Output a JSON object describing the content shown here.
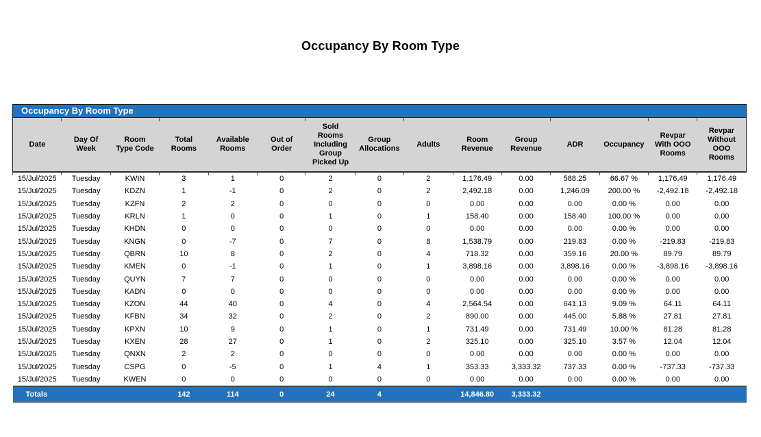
{
  "page": {
    "title": "Occupancy By Room Type"
  },
  "report": {
    "header_bar": "Occupancy By Room Type",
    "columns": [
      "Date",
      "Day Of\nWeek",
      "Room\nType Code",
      "Total\nRooms",
      "Available\nRooms",
      "Out of\nOrder",
      "Sold\nRooms\nIncluding\nGroup\nPicked Up",
      "Group\nAllocations",
      "Adults",
      "Room\nRevenue",
      "Group\nRevenue",
      "ADR",
      "Occupancy",
      "Revpar\nWith OOO\nRooms",
      "Revpar\nWithout\nOOO\nRooms"
    ],
    "rows": [
      [
        "15/Jul/2025",
        "Tuesday",
        "KWIN",
        "3",
        "1",
        "0",
        "2",
        "0",
        "2",
        "1,176.49",
        "0.00",
        "588.25",
        "66.67 %",
        "1,176.49",
        "1,176.49"
      ],
      [
        "15/Jul/2025",
        "Tuesday",
        "KDZN",
        "1",
        "-1",
        "0",
        "2",
        "0",
        "2",
        "2,492.18",
        "0.00",
        "1,246.09",
        "200.00 %",
        "-2,492.18",
        "-2,492.18"
      ],
      [
        "15/Jul/2025",
        "Tuesday",
        "KZFN",
        "2",
        "2",
        "0",
        "0",
        "0",
        "0",
        "0.00",
        "0.00",
        "0.00",
        "0.00 %",
        "0.00",
        "0.00"
      ],
      [
        "15/Jul/2025",
        "Tuesday",
        "KRLN",
        "1",
        "0",
        "0",
        "1",
        "0",
        "1",
        "158.40",
        "0.00",
        "158.40",
        "100.00 %",
        "0.00",
        "0.00"
      ],
      [
        "15/Jul/2025",
        "Tuesday",
        "KHDN",
        "0",
        "0",
        "0",
        "0",
        "0",
        "0",
        "0.00",
        "0.00",
        "0.00",
        "0.00 %",
        "0.00",
        "0.00"
      ],
      [
        "15/Jul/2025",
        "Tuesday",
        "KNGN",
        "0",
        "-7",
        "0",
        "7",
        "0",
        "8",
        "1,538.79",
        "0.00",
        "219.83",
        "0.00 %",
        "-219.83",
        "-219.83"
      ],
      [
        "15/Jul/2025",
        "Tuesday",
        "QBRN",
        "10",
        "8",
        "0",
        "2",
        "0",
        "4",
        "718.32",
        "0.00",
        "359.16",
        "20.00 %",
        "89.79",
        "89.79"
      ],
      [
        "15/Jul/2025",
        "Tuesday",
        "KMEN",
        "0",
        "-1",
        "0",
        "1",
        "0",
        "1",
        "3,898.16",
        "0.00",
        "3,898.16",
        "0.00 %",
        "-3,898.16",
        "-3,898.16"
      ],
      [
        "15/Jul/2025",
        "Tuesday",
        "QUYN",
        "7",
        "7",
        "0",
        "0",
        "0",
        "0",
        "0.00",
        "0.00",
        "0.00",
        "0.00 %",
        "0.00",
        "0.00"
      ],
      [
        "15/Jul/2025",
        "Tuesday",
        "KADN",
        "0",
        "0",
        "0",
        "0",
        "0",
        "0",
        "0.00",
        "0.00",
        "0.00",
        "0.00 %",
        "0.00",
        "0.00"
      ],
      [
        "15/Jul/2025",
        "Tuesday",
        "KZON",
        "44",
        "40",
        "0",
        "4",
        "0",
        "4",
        "2,564.54",
        "0.00",
        "641.13",
        "9.09 %",
        "64.11",
        "64.11"
      ],
      [
        "15/Jul/2025",
        "Tuesday",
        "KFBN",
        "34",
        "32",
        "0",
        "2",
        "0",
        "2",
        "890.00",
        "0.00",
        "445.00",
        "5.88 %",
        "27.81",
        "27.81"
      ],
      [
        "15/Jul/2025",
        "Tuesday",
        "KPXN",
        "10",
        "9",
        "0",
        "1",
        "0",
        "1",
        "731.49",
        "0.00",
        "731.49",
        "10.00 %",
        "81.28",
        "81.28"
      ],
      [
        "15/Jul/2025",
        "Tuesday",
        "KXEN",
        "28",
        "27",
        "0",
        "1",
        "0",
        "2",
        "325.10",
        "0.00",
        "325.10",
        "3.57 %",
        "12.04",
        "12.04"
      ],
      [
        "15/Jul/2025",
        "Tuesday",
        "QNXN",
        "2",
        "2",
        "0",
        "0",
        "0",
        "0",
        "0.00",
        "0.00",
        "0.00",
        "0.00 %",
        "0.00",
        "0.00"
      ],
      [
        "15/Jul/2025",
        "Tuesday",
        "CSPG",
        "0",
        "-5",
        "0",
        "1",
        "4",
        "1",
        "353.33",
        "3,333.32",
        "737.33",
        "0.00 %",
        "-737.33",
        "-737.33"
      ],
      [
        "15/Jul/2025",
        "Tuesday",
        "KWEN",
        "0",
        "0",
        "0",
        "0",
        "0",
        "0",
        "0.00",
        "0.00",
        "0.00",
        "0.00 %",
        "0.00",
        "0.00"
      ]
    ],
    "totals": [
      "Totals",
      "",
      "",
      "142",
      "114",
      "0",
      "24",
      "4",
      "",
      "14,846.80",
      "3,333.32",
      "",
      "",
      "",
      ""
    ]
  },
  "colors": {
    "accent_blue": "#2272BD",
    "header_gray": "#D4D4D4"
  }
}
